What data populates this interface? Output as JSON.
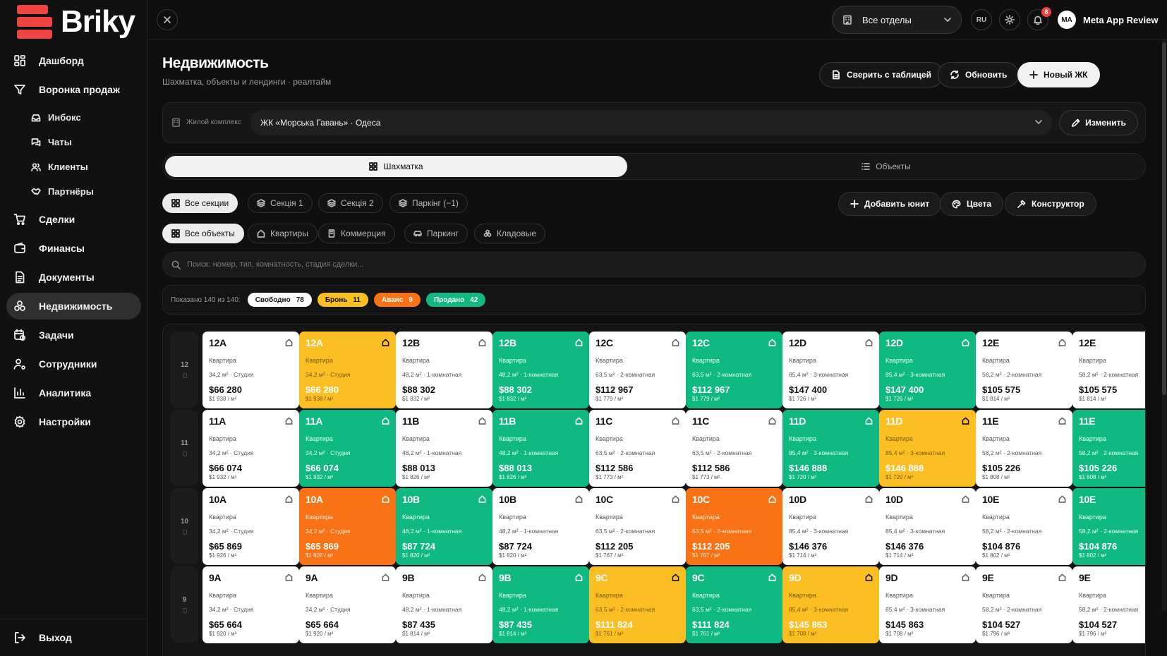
{
  "brand": {
    "name": "Briky",
    "color": "#ef4444"
  },
  "sidebar": {
    "items": [
      {
        "label": "Дашборд",
        "icon": "dashboard-icon"
      },
      {
        "label": "Воронка продаж",
        "icon": "funnel-icon"
      },
      {
        "label": "Инбокс",
        "icon": "inbox-icon",
        "sub": true
      },
      {
        "label": "Чаты",
        "icon": "chat-icon",
        "sub": true
      },
      {
        "label": "Клиенты",
        "icon": "users-icon",
        "sub": true
      },
      {
        "label": "Партнёры",
        "icon": "handshake-icon",
        "sub": true
      },
      {
        "label": "Сделки",
        "icon": "cart-icon"
      },
      {
        "label": "Финансы",
        "icon": "wallet-icon"
      },
      {
        "label": "Документы",
        "icon": "document-icon"
      },
      {
        "label": "Недвижимость",
        "icon": "buildings-icon",
        "active": true
      },
      {
        "label": "Задачи",
        "icon": "calendar-clock-icon"
      },
      {
        "label": "Сотрудники",
        "icon": "user-gear-icon"
      },
      {
        "label": "Аналитика",
        "icon": "chart-icon"
      },
      {
        "label": "Настройки",
        "icon": "gear-icon"
      }
    ],
    "logout": "Выход"
  },
  "topbar": {
    "department": "Все отделы",
    "lang": "RU",
    "notifications": "8",
    "user": {
      "initials": "MA",
      "name": "Meta App Review"
    }
  },
  "page": {
    "title": "Недвижимость",
    "subtitle": "Шахматка, объекты и лендинги · реалтайм",
    "buttons": {
      "compare": "Сверить с таблицей",
      "refresh": "Обновить",
      "new": "Новый ЖК"
    }
  },
  "complex": {
    "label": "Жилой комплекс",
    "value": "ЖК «Морська Гавань» · Одеса",
    "edit": "Изменить"
  },
  "view_tabs": {
    "chess": "Шахматка",
    "objects": "Объекты"
  },
  "sections": [
    "Все секции",
    "Секція 1",
    "Секція 2",
    "Паркінг (−1)"
  ],
  "actions": {
    "add_unit": "Добавить юнит",
    "colors": "Цвета",
    "constructor": "Конструктор"
  },
  "object_types": [
    "Все объекты",
    "Квартиры",
    "Коммерция",
    "Паркинг",
    "Кладовые"
  ],
  "search": {
    "placeholder": "Поиск: номер, тип, комнатность, стадия сделки..."
  },
  "stats": {
    "shown": "Показано 140 из 140:",
    "pills": [
      {
        "label": "Свободно",
        "count": "78",
        "bg": "#ffffff",
        "fg": "#111111"
      },
      {
        "label": "Бронь",
        "count": "11",
        "bg": "#fbbf24",
        "fg": "#111111"
      },
      {
        "label": "Аванс",
        "count": "9",
        "bg": "#f97316",
        "fg": "#ffffff"
      },
      {
        "label": "Продано",
        "count": "42",
        "bg": "#10b981",
        "fg": "#ffffff"
      }
    ]
  },
  "grid": {
    "type_label": "Квартира",
    "floors": [
      {
        "floor": "12",
        "units": [
          {
            "num": "12A",
            "meta": "34,2 м² · Студия",
            "price": "$66 280",
            "psqm": "$1 938 / м²",
            "status": "free"
          },
          {
            "num": "12A",
            "meta": "34,2 м² · Студия",
            "price": "$66 280",
            "psqm": "$1 938 / м²",
            "status": "booked"
          },
          {
            "num": "12B",
            "meta": "48,2 м² · 1-комнатная",
            "price": "$88 302",
            "psqm": "$1 832 / м²",
            "status": "free"
          },
          {
            "num": "12B",
            "meta": "48,2 м² · 1-комнатная",
            "price": "$88 302",
            "psqm": "$1 832 / м²",
            "status": "sold"
          },
          {
            "num": "12C",
            "meta": "63,5 м² · 2-комнатная",
            "price": "$112 967",
            "psqm": "$1 779 / м²",
            "status": "free"
          },
          {
            "num": "12C",
            "meta": "63,5 м² · 2-комнатная",
            "price": "$112 967",
            "psqm": "$1 779 / м²",
            "status": "sold"
          },
          {
            "num": "12D",
            "meta": "85,4 м² · 3-комнатная",
            "price": "$147 400",
            "psqm": "$1 726 / м²",
            "status": "free"
          },
          {
            "num": "12D",
            "meta": "85,4 м² · 3-комнатная",
            "price": "$147 400",
            "psqm": "$1 726 / м²",
            "status": "sold"
          },
          {
            "num": "12E",
            "meta": "58,2 м² · 2-комнатная",
            "price": "$105 575",
            "psqm": "$1 814 / м²",
            "status": "free"
          },
          {
            "num": "12E",
            "meta": "58,2 м² · 2-комнатная",
            "price": "$105 575",
            "psqm": "$1 814 / м²",
            "status": "free"
          }
        ]
      },
      {
        "floor": "11",
        "units": [
          {
            "num": "11A",
            "meta": "34,2 м² · Студия",
            "price": "$66 074",
            "psqm": "$1 932 / м²",
            "status": "free"
          },
          {
            "num": "11A",
            "meta": "34,2 м² · Студия",
            "price": "$66 074",
            "psqm": "$1 932 / м²",
            "status": "sold"
          },
          {
            "num": "11B",
            "meta": "48,2 м² · 1-комнатная",
            "price": "$88 013",
            "psqm": "$1 826 / м²",
            "status": "free"
          },
          {
            "num": "11B",
            "meta": "48,2 м² · 1-комнатная",
            "price": "$88 013",
            "psqm": "$1 826 / м²",
            "status": "sold"
          },
          {
            "num": "11C",
            "meta": "63,5 м² · 2-комнатная",
            "price": "$112 586",
            "psqm": "$1 773 / м²",
            "status": "free"
          },
          {
            "num": "11C",
            "meta": "63,5 м² · 2-комнатная",
            "price": "$112 586",
            "psqm": "$1 773 / м²",
            "status": "free"
          },
          {
            "num": "11D",
            "meta": "85,4 м² · 3-комнатная",
            "price": "$146 888",
            "psqm": "$1 720 / м²",
            "status": "sold"
          },
          {
            "num": "11D",
            "meta": "85,4 м² · 3-комнатная",
            "price": "$146 888",
            "psqm": "$1 720 / м²",
            "status": "booked"
          },
          {
            "num": "11E",
            "meta": "58,2 м² · 2-комнатная",
            "price": "$105 226",
            "psqm": "$1 808 / м²",
            "status": "free"
          },
          {
            "num": "11E",
            "meta": "58,2 м² · 2-комнатная",
            "price": "$105 226",
            "psqm": "$1 808 / м²",
            "status": "sold"
          }
        ]
      },
      {
        "floor": "10",
        "units": [
          {
            "num": "10A",
            "meta": "34,2 м² · Студия",
            "price": "$65 869",
            "psqm": "$1 926 / м²",
            "status": "free"
          },
          {
            "num": "10A",
            "meta": "34,2 м² · Студия",
            "price": "$65 869",
            "psqm": "$1 926 / м²",
            "status": "advance"
          },
          {
            "num": "10B",
            "meta": "48,2 м² · 1-комнатная",
            "price": "$87 724",
            "psqm": "$1 820 / м²",
            "status": "sold"
          },
          {
            "num": "10B",
            "meta": "48,2 м² · 1-комнатная",
            "price": "$87 724",
            "psqm": "$1 820 / м²",
            "status": "free"
          },
          {
            "num": "10C",
            "meta": "63,5 м² · 2-комнатная",
            "price": "$112 205",
            "psqm": "$1 767 / м²",
            "status": "free"
          },
          {
            "num": "10C",
            "meta": "63,5 м² · 2-комнатная",
            "price": "$112 205",
            "psqm": "$1 767 / м²",
            "status": "advance"
          },
          {
            "num": "10D",
            "meta": "85,4 м² · 3-комнатная",
            "price": "$146 376",
            "psqm": "$1 714 / м²",
            "status": "free"
          },
          {
            "num": "10D",
            "meta": "85,4 м² · 3-комнатная",
            "price": "$146 376",
            "psqm": "$1 714 / м²",
            "status": "free"
          },
          {
            "num": "10E",
            "meta": "58,2 м² · 2-комнатная",
            "price": "$104 876",
            "psqm": "$1 802 / м²",
            "status": "free"
          },
          {
            "num": "10E",
            "meta": "58,2 м² · 2-комнатная",
            "price": "$104 876",
            "psqm": "$1 802 / м²",
            "status": "sold"
          }
        ]
      },
      {
        "floor": "9",
        "units": [
          {
            "num": "9A",
            "meta": "34,2 м² · Студия",
            "price": "$65 664",
            "psqm": "$1 920 / м²",
            "status": "free"
          },
          {
            "num": "9A",
            "meta": "34,2 м² · Студия",
            "price": "$65 664",
            "psqm": "$1 920 / м²",
            "status": "free"
          },
          {
            "num": "9B",
            "meta": "48,2 м² · 1-комнатная",
            "price": "$87 435",
            "psqm": "$1 814 / м²",
            "status": "free"
          },
          {
            "num": "9B",
            "meta": "48,2 м² · 1-комнатная",
            "price": "$87 435",
            "psqm": "$1 814 / м²",
            "status": "sold"
          },
          {
            "num": "9C",
            "meta": "63,5 м² · 2-комнатная",
            "price": "$111 824",
            "psqm": "$1 761 / м²",
            "status": "booked"
          },
          {
            "num": "9C",
            "meta": "63,5 м² · 2-комнатная",
            "price": "$111 824",
            "psqm": "$1 761 / м²",
            "status": "sold"
          },
          {
            "num": "9D",
            "meta": "85,4 м² · 3-комнатная",
            "price": "$145 863",
            "psqm": "$1 708 / м²",
            "status": "booked"
          },
          {
            "num": "9D",
            "meta": "85,4 м² · 3-комнатная",
            "price": "$145 863",
            "psqm": "$1 708 / м²",
            "status": "free"
          },
          {
            "num": "9E",
            "meta": "58,2 м² · 2-комнатная",
            "price": "$104 527",
            "psqm": "$1 796 / м²",
            "status": "free"
          },
          {
            "num": "9E",
            "meta": "58,2 м² · 2-комнатная",
            "price": "$104 527",
            "psqm": "$1 796 / м²",
            "status": "free"
          }
        ]
      }
    ]
  }
}
